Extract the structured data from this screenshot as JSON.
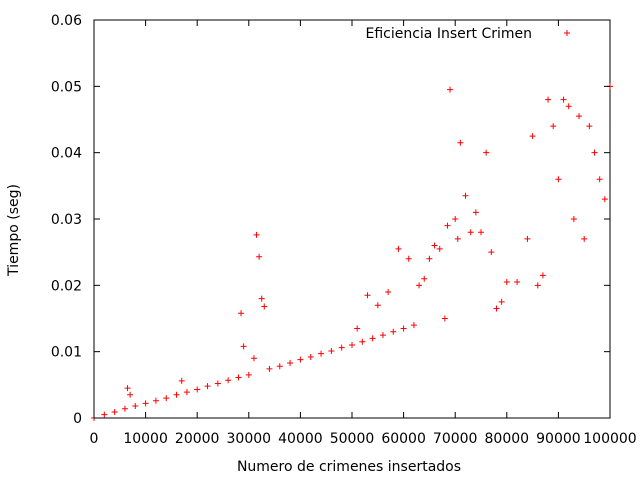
{
  "chart_data": {
    "type": "scatter",
    "title": "",
    "xlabel": "Numero de crimenes insertados",
    "ylabel": "Tiempo (seg)",
    "xlim": [
      0,
      100000
    ],
    "ylim": [
      0,
      0.06
    ],
    "xticks": [
      0,
      10000,
      20000,
      30000,
      40000,
      50000,
      60000,
      70000,
      80000,
      90000,
      100000
    ],
    "xtick_labels": [
      "0",
      "10000",
      "20000",
      "30000",
      "40000",
      "50000",
      "60000",
      "70000",
      "80000",
      "90000",
      "100000"
    ],
    "yticks": [
      0,
      0.01,
      0.02,
      0.03,
      0.04,
      0.05,
      0.06
    ],
    "ytick_labels": [
      "0",
      "0.01",
      "0.02",
      "0.03",
      "0.04",
      "0.05",
      "0.06"
    ],
    "grid": false,
    "legend_position": "top-right",
    "marker": "+",
    "series": [
      {
        "name": "Eficiencia Insert Crimen",
        "color": "#ff0000",
        "points": [
          [
            0,
            0.0
          ],
          [
            2000,
            0.0005
          ],
          [
            4000,
            0.0009
          ],
          [
            6000,
            0.0014
          ],
          [
            6500,
            0.0045
          ],
          [
            7000,
            0.0035
          ],
          [
            8000,
            0.0018
          ],
          [
            10000,
            0.0022
          ],
          [
            12000,
            0.0026
          ],
          [
            14000,
            0.003
          ],
          [
            16000,
            0.0035
          ],
          [
            17000,
            0.0056
          ],
          [
            18000,
            0.0039
          ],
          [
            20000,
            0.0043
          ],
          [
            22000,
            0.0048
          ],
          [
            24000,
            0.0052
          ],
          [
            26000,
            0.0057
          ],
          [
            28000,
            0.0061
          ],
          [
            28500,
            0.0158
          ],
          [
            29000,
            0.0108
          ],
          [
            30000,
            0.0065
          ],
          [
            31000,
            0.009
          ],
          [
            31500,
            0.0276
          ],
          [
            32000,
            0.0243
          ],
          [
            32500,
            0.018
          ],
          [
            33000,
            0.0168
          ],
          [
            34000,
            0.0074
          ],
          [
            36000,
            0.0078
          ],
          [
            38000,
            0.0083
          ],
          [
            40000,
            0.0088
          ],
          [
            42000,
            0.0092
          ],
          [
            44000,
            0.0097
          ],
          [
            46000,
            0.0101
          ],
          [
            48000,
            0.0106
          ],
          [
            50000,
            0.011
          ],
          [
            51000,
            0.0135
          ],
          [
            52000,
            0.0115
          ],
          [
            53000,
            0.0185
          ],
          [
            54000,
            0.012
          ],
          [
            55000,
            0.017
          ],
          [
            56000,
            0.0125
          ],
          [
            57000,
            0.019
          ],
          [
            58000,
            0.013
          ],
          [
            59000,
            0.0255
          ],
          [
            60000,
            0.0135
          ],
          [
            61000,
            0.024
          ],
          [
            62000,
            0.014
          ],
          [
            63000,
            0.02
          ],
          [
            64000,
            0.021
          ],
          [
            65000,
            0.024
          ],
          [
            66000,
            0.026
          ],
          [
            67000,
            0.0255
          ],
          [
            68000,
            0.015
          ],
          [
            68500,
            0.029
          ],
          [
            69000,
            0.0495
          ],
          [
            70000,
            0.03
          ],
          [
            70500,
            0.027
          ],
          [
            71000,
            0.0415
          ],
          [
            72000,
            0.0335
          ],
          [
            73000,
            0.028
          ],
          [
            74000,
            0.031
          ],
          [
            75000,
            0.028
          ],
          [
            76000,
            0.04
          ],
          [
            77000,
            0.025
          ],
          [
            78000,
            0.0165
          ],
          [
            79000,
            0.0175
          ],
          [
            80000,
            0.0205
          ],
          [
            82000,
            0.0205
          ],
          [
            84000,
            0.027
          ],
          [
            85000,
            0.0425
          ],
          [
            86000,
            0.02
          ],
          [
            87000,
            0.0215
          ],
          [
            88000,
            0.048
          ],
          [
            89000,
            0.044
          ],
          [
            90000,
            0.036
          ],
          [
            91000,
            0.048
          ],
          [
            92000,
            0.047
          ],
          [
            93000,
            0.03
          ],
          [
            94000,
            0.0455
          ],
          [
            95000,
            0.027
          ],
          [
            96000,
            0.044
          ],
          [
            97000,
            0.04
          ],
          [
            98000,
            0.036
          ],
          [
            99000,
            0.033
          ],
          [
            100000,
            0.05
          ]
        ]
      }
    ]
  }
}
